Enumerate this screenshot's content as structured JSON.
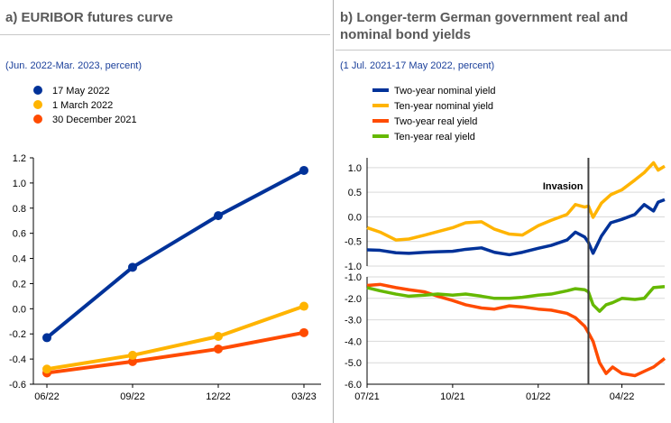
{
  "panels": [
    {
      "title": "a) EURIBOR futures curve",
      "subtitle": "(Jun. 2022-Mar. 2023, percent)"
    },
    {
      "title_line1": "b) Longer-term German government real and",
      "title_line2": "nominal bond yields",
      "subtitle": "(1 Jul. 2021-17 May 2022, percent)"
    }
  ],
  "colors": {
    "navy": "#003299",
    "yellow": "#ffb400",
    "orange": "#ff4b00",
    "green": "#65b800",
    "grid": "#d9d9d9",
    "axis": "#000000"
  },
  "chart_data": [
    {
      "type": "line",
      "title": "a) EURIBOR futures curve",
      "subtitle": "(Jun. 2022-Mar. 2023, percent)",
      "categories": [
        "06/22",
        "09/22",
        "12/22",
        "03/23"
      ],
      "series": [
        {
          "name": "17 May 2022",
          "color": "#003299",
          "values": [
            -0.23,
            0.33,
            0.74,
            1.1
          ]
        },
        {
          "name": "1 March 2022",
          "color": "#ffb400",
          "values": [
            -0.48,
            -0.37,
            -0.22,
            0.02
          ]
        },
        {
          "name": "30 December 2021",
          "color": "#ff4b00",
          "values": [
            -0.51,
            -0.42,
            -0.32,
            -0.19
          ]
        }
      ],
      "ylim": [
        -0.6,
        1.2
      ],
      "yticks": [
        "-0.6",
        "-0.4",
        "-0.2",
        "0.0",
        "0.2",
        "0.4",
        "0.6",
        "0.8",
        "1.0",
        "1.2"
      ],
      "markers": true,
      "grid": false,
      "legend": "top-left"
    },
    {
      "type": "line",
      "title": "b) Longer-term German government real and nominal bond yields",
      "subtitle": "(1 Jul. 2021-17 May 2022, percent)",
      "x_range": [
        "2021-07-01",
        "2022-05-17"
      ],
      "xticks": [
        {
          "date": "2021-07-01",
          "label": "07/21"
        },
        {
          "date": "2021-10-01",
          "label": "10/21"
        },
        {
          "date": "2022-01-01",
          "label": "01/22"
        },
        {
          "date": "2022-04-01",
          "label": "04/22"
        }
      ],
      "annotation": {
        "label": "Invasion",
        "date": "2022-02-24"
      },
      "legend": "top-left",
      "subplots": [
        {
          "ylim": [
            -1.0,
            1.2
          ],
          "yticks": [
            "-1.0",
            "-0.5",
            "0.0",
            "0.5",
            "1.0"
          ],
          "series": [
            {
              "name": "Two-year nominal yield",
              "color": "#003299",
              "points": [
                [
                  "2021-07-01",
                  -0.67
                ],
                [
                  "2021-07-15",
                  -0.68
                ],
                [
                  "2021-08-01",
                  -0.73
                ],
                [
                  "2021-08-15",
                  -0.74
                ],
                [
                  "2021-09-01",
                  -0.72
                ],
                [
                  "2021-09-15",
                  -0.71
                ],
                [
                  "2021-10-01",
                  -0.7
                ],
                [
                  "2021-10-15",
                  -0.66
                ],
                [
                  "2021-11-01",
                  -0.63
                ],
                [
                  "2021-11-15",
                  -0.72
                ],
                [
                  "2021-12-01",
                  -0.77
                ],
                [
                  "2021-12-15",
                  -0.72
                ],
                [
                  "2022-01-01",
                  -0.64
                ],
                [
                  "2022-01-15",
                  -0.58
                ],
                [
                  "2022-02-01",
                  -0.47
                ],
                [
                  "2022-02-10",
                  -0.31
                ],
                [
                  "2022-02-20",
                  -0.41
                ],
                [
                  "2022-02-24",
                  -0.52
                ],
                [
                  "2022-03-01",
                  -0.74
                ],
                [
                  "2022-03-10",
                  -0.39
                ],
                [
                  "2022-03-20",
                  -0.12
                ],
                [
                  "2022-04-01",
                  -0.05
                ],
                [
                  "2022-04-15",
                  0.05
                ],
                [
                  "2022-04-25",
                  0.25
                ],
                [
                  "2022-05-05",
                  0.12
                ],
                [
                  "2022-05-10",
                  0.3
                ],
                [
                  "2022-05-17",
                  0.35
                ]
              ]
            },
            {
              "name": "Ten-year nominal yield",
              "color": "#ffb400",
              "points": [
                [
                  "2021-07-01",
                  -0.22
                ],
                [
                  "2021-07-15",
                  -0.31
                ],
                [
                  "2021-08-01",
                  -0.47
                ],
                [
                  "2021-08-15",
                  -0.45
                ],
                [
                  "2021-09-01",
                  -0.37
                ],
                [
                  "2021-09-15",
                  -0.3
                ],
                [
                  "2021-10-01",
                  -0.22
                ],
                [
                  "2021-10-15",
                  -0.12
                ],
                [
                  "2021-11-01",
                  -0.1
                ],
                [
                  "2021-11-15",
                  -0.25
                ],
                [
                  "2021-12-01",
                  -0.35
                ],
                [
                  "2021-12-15",
                  -0.37
                ],
                [
                  "2022-01-01",
                  -0.18
                ],
                [
                  "2022-01-15",
                  -0.07
                ],
                [
                  "2022-02-01",
                  0.05
                ],
                [
                  "2022-02-10",
                  0.25
                ],
                [
                  "2022-02-20",
                  0.2
                ],
                [
                  "2022-02-24",
                  0.22
                ],
                [
                  "2022-03-01",
                  -0.01
                ],
                [
                  "2022-03-10",
                  0.28
                ],
                [
                  "2022-03-20",
                  0.45
                ],
                [
                  "2022-04-01",
                  0.55
                ],
                [
                  "2022-04-15",
                  0.75
                ],
                [
                  "2022-04-25",
                  0.9
                ],
                [
                  "2022-05-05",
                  1.1
                ],
                [
                  "2022-05-10",
                  0.95
                ],
                [
                  "2022-05-17",
                  1.03
                ]
              ]
            }
          ]
        },
        {
          "ylim": [
            -6.0,
            -1.0
          ],
          "yticks": [
            "-6.0",
            "-5.0",
            "-4.0",
            "-3.0",
            "-2.0",
            "-1.0"
          ],
          "series": [
            {
              "name": "Two-year real yield",
              "color": "#ff4b00",
              "points": [
                [
                  "2021-07-01",
                  -1.4
                ],
                [
                  "2021-07-15",
                  -1.35
                ],
                [
                  "2021-08-01",
                  -1.5
                ],
                [
                  "2021-08-15",
                  -1.6
                ],
                [
                  "2021-09-01",
                  -1.7
                ],
                [
                  "2021-09-15",
                  -1.9
                ],
                [
                  "2021-10-01",
                  -2.1
                ],
                [
                  "2021-10-15",
                  -2.3
                ],
                [
                  "2021-11-01",
                  -2.45
                ],
                [
                  "2021-11-15",
                  -2.5
                ],
                [
                  "2021-12-01",
                  -2.35
                ],
                [
                  "2021-12-15",
                  -2.4
                ],
                [
                  "2022-01-01",
                  -2.5
                ],
                [
                  "2022-01-15",
                  -2.55
                ],
                [
                  "2022-02-01",
                  -2.7
                ],
                [
                  "2022-02-10",
                  -2.9
                ],
                [
                  "2022-02-20",
                  -3.3
                ],
                [
                  "2022-02-24",
                  -3.6
                ],
                [
                  "2022-03-01",
                  -4.0
                ],
                [
                  "2022-03-08",
                  -5.0
                ],
                [
                  "2022-03-15",
                  -5.5
                ],
                [
                  "2022-03-22",
                  -5.2
                ],
                [
                  "2022-04-01",
                  -5.5
                ],
                [
                  "2022-04-15",
                  -5.6
                ],
                [
                  "2022-04-25",
                  -5.4
                ],
                [
                  "2022-05-05",
                  -5.2
                ],
                [
                  "2022-05-17",
                  -4.8
                ]
              ]
            },
            {
              "name": "Ten-year real yield",
              "color": "#65b800",
              "points": [
                [
                  "2021-07-01",
                  -1.5
                ],
                [
                  "2021-07-15",
                  -1.65
                ],
                [
                  "2021-08-01",
                  -1.8
                ],
                [
                  "2021-08-15",
                  -1.9
                ],
                [
                  "2021-09-01",
                  -1.85
                ],
                [
                  "2021-09-15",
                  -1.8
                ],
                [
                  "2021-10-01",
                  -1.85
                ],
                [
                  "2021-10-15",
                  -1.8
                ],
                [
                  "2021-11-01",
                  -1.9
                ],
                [
                  "2021-11-15",
                  -2.0
                ],
                [
                  "2021-12-01",
                  -2.0
                ],
                [
                  "2021-12-15",
                  -1.95
                ],
                [
                  "2022-01-01",
                  -1.85
                ],
                [
                  "2022-01-15",
                  -1.8
                ],
                [
                  "2022-02-01",
                  -1.65
                ],
                [
                  "2022-02-10",
                  -1.55
                ],
                [
                  "2022-02-20",
                  -1.6
                ],
                [
                  "2022-02-24",
                  -1.7
                ],
                [
                  "2022-03-01",
                  -2.3
                ],
                [
                  "2022-03-08",
                  -2.6
                ],
                [
                  "2022-03-15",
                  -2.3
                ],
                [
                  "2022-03-22",
                  -2.2
                ],
                [
                  "2022-04-01",
                  -2.0
                ],
                [
                  "2022-04-15",
                  -2.05
                ],
                [
                  "2022-04-25",
                  -2.0
                ],
                [
                  "2022-05-05",
                  -1.5
                ],
                [
                  "2022-05-17",
                  -1.45
                ]
              ]
            }
          ]
        }
      ]
    }
  ]
}
